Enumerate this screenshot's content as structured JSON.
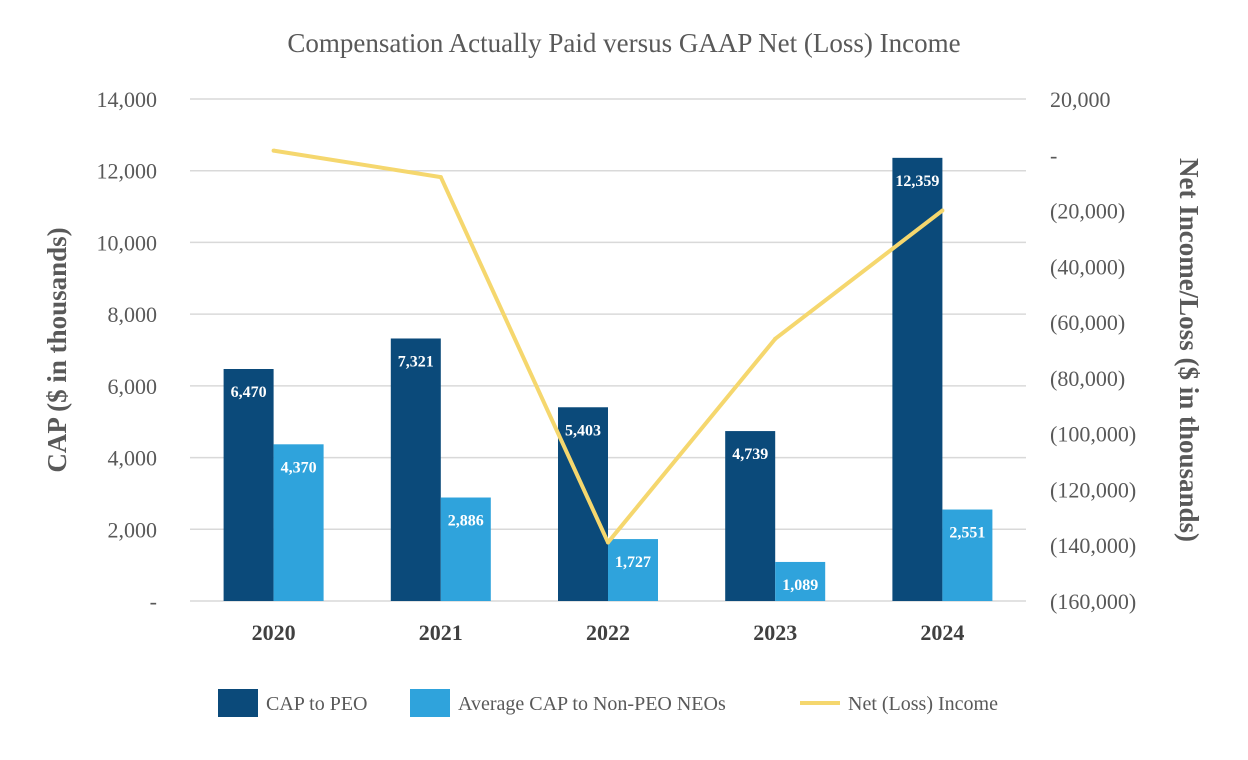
{
  "chart_data": {
    "type": "bar",
    "title": "Compensation Actually Paid versus GAAP Net (Loss) Income",
    "categories": [
      "2020",
      "2021",
      "2022",
      "2023",
      "2024"
    ],
    "series": [
      {
        "name": "CAP to PEO",
        "type": "bar",
        "axis": "left",
        "color": "#0b4a7a",
        "values": [
          6470,
          7321,
          5403,
          4739,
          12359
        ],
        "labels": [
          "6,470",
          "7,321",
          "5,403",
          "4,739",
          "12,359"
        ]
      },
      {
        "name": "Average CAP to Non-PEO NEOs",
        "type": "bar",
        "axis": "left",
        "color": "#2fa3dc",
        "values": [
          4370,
          2886,
          1727,
          1089,
          2551
        ],
        "labels": [
          "4,370",
          "2,886",
          "1,727",
          "1,089",
          "2,551"
        ]
      },
      {
        "name": "Net (Loss) Income",
        "type": "line",
        "axis": "right",
        "color": "#f5d76e",
        "values": [
          1500,
          -8000,
          -139000,
          -66000,
          -20000
        ]
      }
    ],
    "ylabel": "CAP ($ in thousands)",
    "ylabel_right": "Net Income/Loss ($ in thousands)",
    "ylim": [
      0,
      14000
    ],
    "ylim_right": [
      -160000,
      20000
    ],
    "yticks": [
      "-",
      "2,000",
      "4,000",
      "6,000",
      "8,000",
      "10,000",
      "12,000",
      "14,000"
    ],
    "yticks_right": [
      "(160,000)",
      "(140,000)",
      "(120,000)",
      "(100,000)",
      "(80,000)",
      "(60,000)",
      "(40,000)",
      "(20,000)",
      "-",
      "20,000"
    ],
    "grid": true,
    "legend_position": "bottom"
  }
}
